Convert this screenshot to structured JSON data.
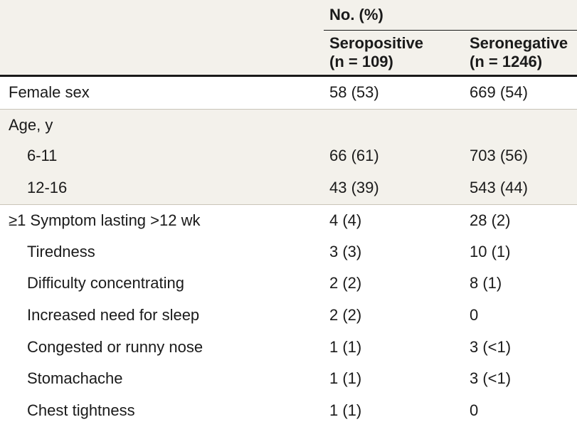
{
  "header": {
    "group_label": "No. (%)",
    "columns": [
      {
        "line1": "Seropositive",
        "line2": "(n = 109)"
      },
      {
        "line1": "Seronegative",
        "line2": "(n = 1246)"
      }
    ]
  },
  "rows": [
    {
      "label": "Female sex",
      "pos": "58 (53)",
      "neg": "669 (54)"
    },
    {
      "label": "Age, y",
      "pos": "",
      "neg": ""
    },
    {
      "label": "6-11",
      "pos": "66 (61)",
      "neg": "703 (56)"
    },
    {
      "label": "12-16",
      "pos": "43 (39)",
      "neg": "543 (44)"
    },
    {
      "label": "≥1 Symptom lasting >12 wk",
      "pos": "4 (4)",
      "neg": "28 (2)"
    },
    {
      "label": "Tiredness",
      "pos": "3 (3)",
      "neg": "10 (1)"
    },
    {
      "label": "Difficulty concentrating",
      "pos": "2 (2)",
      "neg": "8 (1)"
    },
    {
      "label": "Increased need for sleep",
      "pos": "2 (2)",
      "neg": "0"
    },
    {
      "label": "Congested or runny nose",
      "pos": "1 (1)",
      "neg": "3 (<1)"
    },
    {
      "label": "Stomachache",
      "pos": "1 (1)",
      "neg": "3 (<1)"
    },
    {
      "label": "Chest tightness",
      "pos": "1 (1)",
      "neg": "0"
    }
  ],
  "colors": {
    "shade": "#f3f1eb",
    "rule": "#c9c4b8",
    "text": "#1a1a1a"
  }
}
